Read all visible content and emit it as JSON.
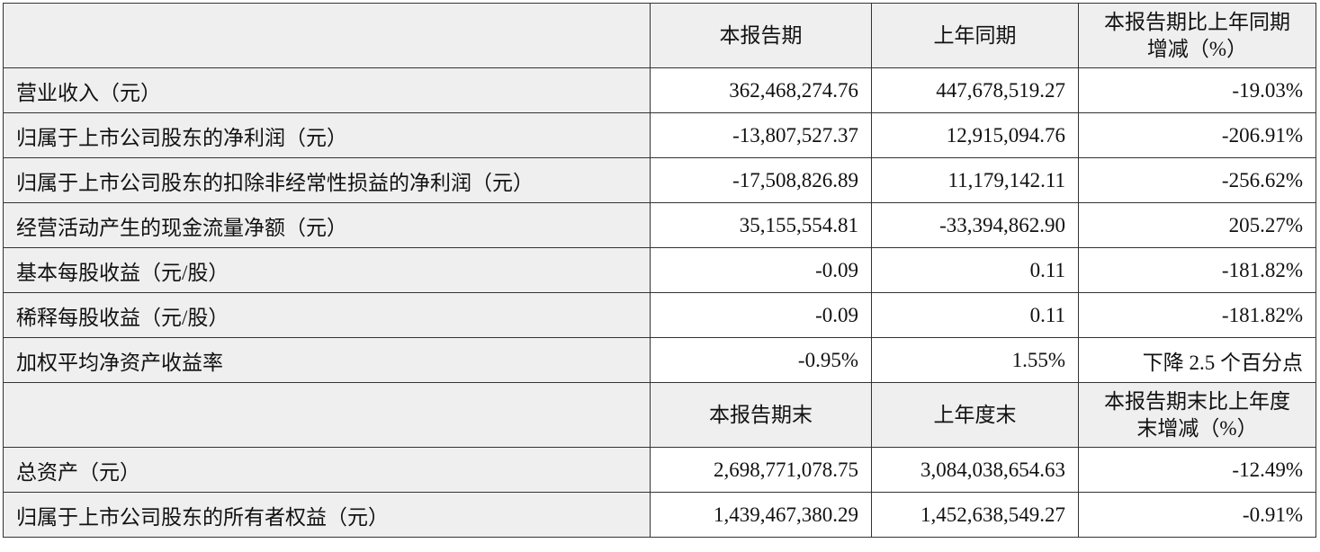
{
  "table": {
    "sections": [
      {
        "columns": [
          "本报告期",
          "上年同期",
          "本报告期比上年同期增减（%）"
        ],
        "rows": [
          {
            "label": "营业收入（元）",
            "cells": [
              "362,468,274.76",
              "447,678,519.27",
              "-19.03%"
            ]
          },
          {
            "label": "归属于上市公司股东的净利润（元）",
            "cells": [
              "-13,807,527.37",
              "12,915,094.76",
              "-206.91%"
            ]
          },
          {
            "label": "归属于上市公司股东的扣除非经常性损益的净利润（元）",
            "cells": [
              "-17,508,826.89",
              "11,179,142.11",
              "-256.62%"
            ]
          },
          {
            "label": "经营活动产生的现金流量净额（元）",
            "cells": [
              "35,155,554.81",
              "-33,394,862.90",
              "205.27%"
            ]
          },
          {
            "label": "基本每股收益（元/股）",
            "cells": [
              "-0.09",
              "0.11",
              "-181.82%"
            ]
          },
          {
            "label": "稀释每股收益（元/股）",
            "cells": [
              "-0.09",
              "0.11",
              "-181.82%"
            ]
          },
          {
            "label": "加权平均净资产收益率",
            "cells": [
              "-0.95%",
              "1.55%",
              "下降 2.5 个百分点"
            ]
          }
        ]
      },
      {
        "columns": [
          "本报告期末",
          "上年度末",
          "本报告期末比上年度末增减（%）"
        ],
        "rows": [
          {
            "label": "总资产（元）",
            "cells": [
              "2,698,771,078.75",
              "3,084,038,654.63",
              "-12.49%"
            ]
          },
          {
            "label": "归属于上市公司股东的所有者权益（元）",
            "cells": [
              "1,439,467,380.29",
              "1,452,638,549.27",
              "-0.91%"
            ]
          }
        ]
      }
    ]
  }
}
